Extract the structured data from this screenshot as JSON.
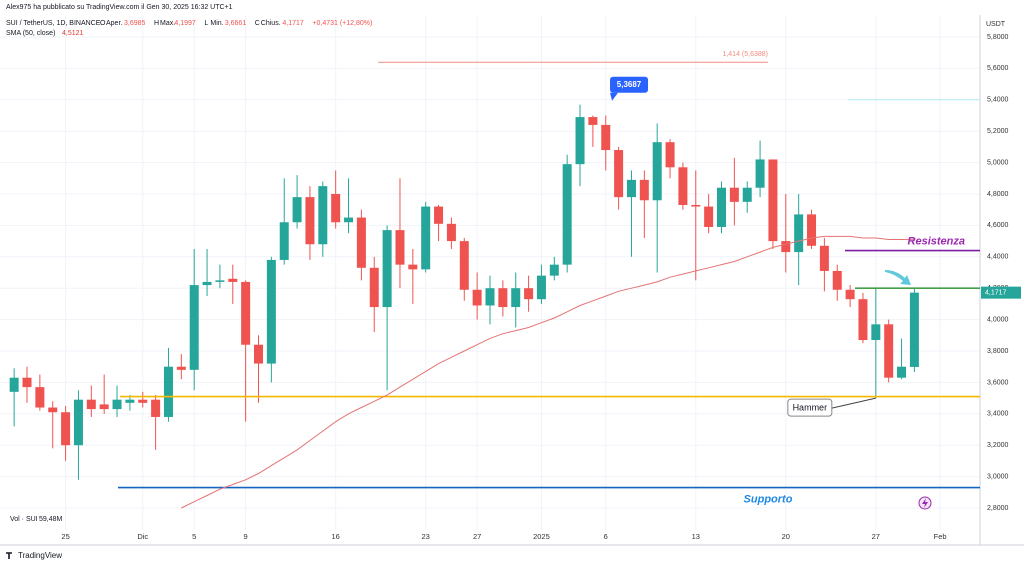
{
  "header": {
    "publisher": "Alex975 ha pubblicato su TradingView.com il Gen 30, 2025 16:32 UTC+1",
    "footer": "TradingView"
  },
  "legend": {
    "symbol": "SUI / TetherUS, 1D, BINANCE",
    "items": [
      {
        "key": "O",
        "label": "Aper.",
        "value": "3,6985"
      },
      {
        "key": "H",
        "label": "Max.",
        "value": "4,1997"
      },
      {
        "key": "L",
        "label": "Min.",
        "value": "3,6661"
      },
      {
        "key": "C",
        "label": "Chius.",
        "value": "4,1717"
      }
    ],
    "change": "+0,4731 (+12,80%)",
    "sma_value": "4,5121",
    "volume": "Vol · SUI",
    "volume_value": "59,48M"
  },
  "chart_data": {
    "type": "candlestick",
    "currency": "USDT",
    "x": [
      0,
      1,
      2,
      3,
      4,
      5,
      6,
      7,
      8,
      9,
      10,
      11,
      12,
      13,
      14,
      15,
      16,
      17,
      18,
      19,
      20,
      21,
      22,
      23,
      24,
      25,
      26,
      27,
      28,
      29,
      30,
      31,
      32,
      33,
      34,
      35,
      36,
      37,
      38,
      39,
      40,
      41,
      42,
      43,
      44,
      45,
      46,
      47,
      48,
      49,
      50,
      51,
      52,
      53,
      54,
      55,
      56,
      57,
      58,
      59,
      60,
      61,
      62,
      63,
      64,
      65,
      66,
      67,
      68,
      69,
      70
    ],
    "open": [
      3.54,
      3.63,
      3.57,
      3.44,
      3.41,
      3.2,
      3.49,
      3.46,
      3.43,
      3.47,
      3.49,
      3.49,
      3.38,
      3.7,
      3.68,
      4.22,
      4.24,
      4.26,
      4.24,
      3.84,
      3.72,
      4.38,
      4.62,
      4.78,
      4.48,
      4.8,
      4.62,
      4.65,
      4.33,
      4.08,
      4.57,
      4.35,
      4.32,
      4.72,
      4.61,
      4.5,
      4.19,
      4.09,
      4.2,
      4.08,
      4.2,
      4.13,
      4.28,
      4.35,
      4.99,
      5.29,
      5.24,
      5.08,
      4.78,
      4.89,
      4.76,
      5.13,
      4.97,
      4.73,
      4.72,
      4.59,
      4.84,
      4.75,
      4.84,
      5.02,
      4.5,
      4.43,
      4.67,
      4.47,
      4.31,
      4.19,
      4.13,
      3.87,
      3.97,
      3.63,
      3.6985
    ],
    "high": [
      3.69,
      3.7,
      3.65,
      3.48,
      3.45,
      3.55,
      3.58,
      3.65,
      3.58,
      3.52,
      3.54,
      3.52,
      3.82,
      3.78,
      4.45,
      4.45,
      4.35,
      4.35,
      4.25,
      3.9,
      4.4,
      4.9,
      4.92,
      4.85,
      4.88,
      4.95,
      4.9,
      4.7,
      4.4,
      4.6,
      4.9,
      4.45,
      4.75,
      4.73,
      4.65,
      4.52,
      4.3,
      4.28,
      4.25,
      4.3,
      4.28,
      4.35,
      4.4,
      5.05,
      5.3687,
      5.3,
      5.3,
      5.1,
      4.95,
      4.95,
      5.25,
      5.15,
      5.0,
      4.95,
      4.8,
      4.88,
      5.03,
      4.88,
      5.14,
      5.02,
      4.8,
      4.8,
      4.7,
      4.52,
      4.35,
      4.22,
      4.17,
      4.2,
      4.0,
      3.88,
      4.1997
    ],
    "low": [
      3.32,
      3.47,
      3.42,
      3.18,
      3.1,
      2.98,
      3.38,
      3.4,
      3.38,
      3.42,
      3.44,
      3.17,
      3.35,
      3.62,
      3.55,
      4.15,
      4.2,
      4.1,
      3.35,
      3.47,
      3.6,
      4.35,
      4.58,
      4.38,
      4.4,
      4.58,
      4.55,
      4.25,
      3.92,
      3.55,
      4.2,
      4.1,
      4.3,
      4.5,
      4.45,
      4.12,
      4.0,
      3.97,
      4.02,
      3.95,
      4.05,
      4.1,
      4.25,
      4.3,
      4.85,
      5.1,
      4.95,
      4.7,
      4.4,
      4.52,
      4.3,
      4.9,
      4.7,
      4.25,
      4.55,
      4.55,
      4.6,
      4.68,
      4.78,
      4.45,
      4.3,
      4.22,
      4.45,
      4.18,
      4.12,
      4.08,
      3.85,
      3.5,
      3.6,
      3.62,
      3.6661
    ],
    "close": [
      3.63,
      3.57,
      3.44,
      3.41,
      3.2,
      3.49,
      3.43,
      3.43,
      3.49,
      3.49,
      3.47,
      3.38,
      3.7,
      3.68,
      4.22,
      4.24,
      4.25,
      4.24,
      3.84,
      3.72,
      4.38,
      4.62,
      4.78,
      4.48,
      4.85,
      4.62,
      4.65,
      4.33,
      4.08,
      4.57,
      4.35,
      4.32,
      4.72,
      4.61,
      4.5,
      4.19,
      4.09,
      4.2,
      4.08,
      4.2,
      4.13,
      4.28,
      4.35,
      4.99,
      5.29,
      5.24,
      5.08,
      4.78,
      4.89,
      4.76,
      5.13,
      4.97,
      4.73,
      4.72,
      4.59,
      4.84,
      4.75,
      4.84,
      5.02,
      4.5,
      4.43,
      4.67,
      4.47,
      4.31,
      4.19,
      4.13,
      3.87,
      3.97,
      3.63,
      3.7,
      4.1717
    ],
    "up_color": "#26a69a",
    "down_color": "#ef5350",
    "sma": {
      "name": "SMA (50, close)",
      "color": "#e57373",
      "values": [
        null,
        null,
        null,
        null,
        null,
        null,
        null,
        null,
        null,
        null,
        null,
        null,
        null,
        2.8,
        2.84,
        2.88,
        2.92,
        2.95,
        2.98,
        3.02,
        3.07,
        3.12,
        3.17,
        3.23,
        3.29,
        3.35,
        3.4,
        3.44,
        3.48,
        3.52,
        3.57,
        3.62,
        3.67,
        3.72,
        3.76,
        3.8,
        3.84,
        3.88,
        3.91,
        3.93,
        3.95,
        3.98,
        4.01,
        4.05,
        4.09,
        4.12,
        4.15,
        4.18,
        4.2,
        4.22,
        4.24,
        4.27,
        4.29,
        4.31,
        4.33,
        4.35,
        4.37,
        4.4,
        4.43,
        4.46,
        4.48,
        4.5,
        4.52,
        4.53,
        4.53,
        4.53,
        4.52,
        4.52,
        4.51,
        4.51,
        4.5121
      ]
    },
    "levels": [
      {
        "value": 3.51,
        "color": "#f5b800"
      },
      {
        "value": 2.93,
        "color": "#1565c0"
      },
      {
        "value": 4.2,
        "color": "#43a047"
      },
      {
        "value": 4.44,
        "color": "#7b1fa2"
      },
      {
        "value": 5.6388,
        "color": "#f28b82",
        "label": "1,414 (5,6388)"
      },
      {
        "value": 5.4,
        "color": "#b2ebf2"
      }
    ],
    "annotations": {
      "high_label": "5,3687",
      "last_price_label": "4,1717",
      "hammer": "Hammer",
      "resistance": "Resistenza",
      "support": "Supporto"
    },
    "xlim": [
      -1.1,
      75.1
    ],
    "ylim": [
      2.66,
      5.94
    ],
    "xticks": [
      {
        "value": 4,
        "label": "25"
      },
      {
        "value": 10,
        "label": "Dic"
      },
      {
        "value": 14,
        "label": "5"
      },
      {
        "value": 18,
        "label": "9"
      },
      {
        "value": 25,
        "label": "16"
      },
      {
        "value": 32,
        "label": "23"
      },
      {
        "value": 36,
        "label": "27"
      },
      {
        "value": 41,
        "label": "2025"
      },
      {
        "value": 46,
        "label": "6"
      },
      {
        "value": 53,
        "label": "13"
      },
      {
        "value": 60,
        "label": "20"
      },
      {
        "value": 67,
        "label": "27"
      },
      {
        "value": 72,
        "label": "Feb"
      }
    ],
    "yticks": [
      {
        "value": 2.8,
        "label": "2,8000"
      },
      {
        "value": 3.0,
        "label": "3,0000"
      },
      {
        "value": 3.2,
        "label": "3,2000"
      },
      {
        "value": 3.4,
        "label": "3,4000"
      },
      {
        "value": 3.6,
        "label": "3,6000"
      },
      {
        "value": 3.8,
        "label": "3,8000"
      },
      {
        "value": 4.0,
        "label": "4,0000"
      },
      {
        "value": 4.2,
        "label": "4,2000"
      },
      {
        "value": 4.4,
        "label": "4,4000"
      },
      {
        "value": 4.6,
        "label": "4,6000"
      },
      {
        "value": 4.8,
        "label": "4,8000"
      },
      {
        "value": 5.0,
        "label": "5,0000"
      },
      {
        "value": 5.2,
        "label": "5,2000"
      },
      {
        "value": 5.4,
        "label": "5,4000"
      },
      {
        "value": 5.6,
        "label": "5,6000"
      },
      {
        "value": 5.8,
        "label": "5,8000"
      }
    ],
    "grid": true
  }
}
